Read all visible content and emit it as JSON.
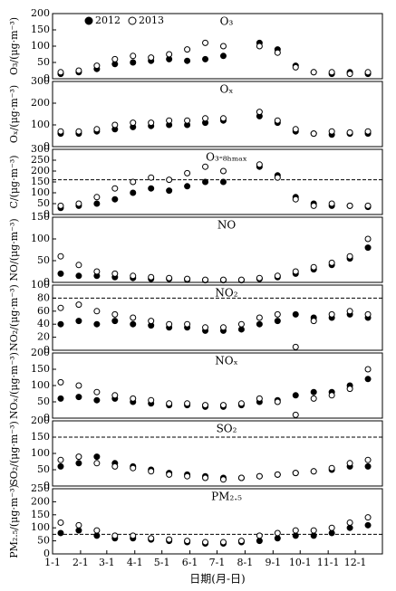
{
  "chart_data": [
    {
      "type": "scatter",
      "title": "O₃",
      "ylabel": "O₃/(μg·m⁻³)",
      "xlim": [
        1,
        366
      ],
      "ylim": [
        0,
        200
      ],
      "yticks": [
        0,
        50,
        100,
        150,
        200
      ],
      "legend": "top left",
      "x": [
        10,
        30,
        50,
        70,
        90,
        110,
        130,
        150,
        170,
        190,
        210,
        230,
        250,
        270,
        290,
        310,
        330,
        350
      ],
      "series": [
        {
          "name": "2012",
          "color": "#000000",
          "filled": true,
          "values": [
            15,
            20,
            30,
            45,
            50,
            55,
            60,
            55,
            60,
            70,
            null,
            110,
            90,
            40,
            20,
            15,
            20,
            15
          ]
        },
        {
          "name": "2013",
          "color": "#000000",
          "filled": false,
          "values": [
            20,
            25,
            40,
            60,
            70,
            65,
            75,
            90,
            110,
            100,
            null,
            100,
            80,
            35,
            20,
            20,
            15,
            20
          ]
        }
      ]
    },
    {
      "type": "scatter",
      "title": "Oₓ",
      "ylabel": "Oₓ/(μg·m⁻³)",
      "xlim": [
        1,
        366
      ],
      "ylim": [
        0,
        300
      ],
      "yticks": [
        0,
        100,
        200,
        300
      ],
      "x": [
        10,
        30,
        50,
        70,
        90,
        110,
        130,
        150,
        170,
        190,
        210,
        230,
        250,
        270,
        290,
        310,
        330,
        350
      ],
      "series": [
        {
          "color": "#000000",
          "filled": true,
          "values": [
            60,
            60,
            70,
            80,
            90,
            95,
            100,
            100,
            110,
            120,
            null,
            140,
            110,
            70,
            60,
            55,
            60,
            60
          ]
        },
        {
          "color": "#000000",
          "filled": false,
          "values": [
            70,
            70,
            80,
            100,
            110,
            110,
            120,
            120,
            130,
            130,
            null,
            160,
            120,
            80,
            60,
            70,
            65,
            70
          ]
        }
      ]
    },
    {
      "type": "scatter",
      "title": "O₃-₈ₕₘₐₓ",
      "ylabel": "C/(μg·m⁻³)",
      "xlim": [
        1,
        366
      ],
      "ylim": [
        0,
        300
      ],
      "yticks": [
        0,
        50,
        100,
        150,
        200,
        250,
        300
      ],
      "reference_line": 160,
      "x": [
        10,
        30,
        50,
        70,
        90,
        110,
        130,
        150,
        170,
        190,
        210,
        230,
        250,
        270,
        290,
        310,
        330,
        350
      ],
      "series": [
        {
          "color": "#000000",
          "filled": true,
          "values": [
            30,
            40,
            50,
            70,
            100,
            120,
            110,
            130,
            150,
            150,
            null,
            220,
            180,
            80,
            50,
            40,
            40,
            35
          ]
        },
        {
          "color": "#000000",
          "filled": false,
          "values": [
            40,
            50,
            80,
            120,
            150,
            170,
            160,
            190,
            220,
            200,
            null,
            230,
            170,
            70,
            40,
            50,
            40,
            40
          ]
        }
      ]
    },
    {
      "type": "scatter",
      "title": "NO",
      "ylabel": "NO/(μg·m⁻³)",
      "xlim": [
        1,
        366
      ],
      "ylim": [
        0,
        150
      ],
      "yticks": [
        0,
        50,
        100,
        150
      ],
      "x": [
        10,
        30,
        50,
        70,
        90,
        110,
        130,
        150,
        170,
        190,
        210,
        230,
        250,
        270,
        290,
        310,
        330,
        350
      ],
      "series": [
        {
          "color": "#000000",
          "filled": true,
          "values": [
            20,
            15,
            15,
            12,
            10,
            8,
            8,
            6,
            5,
            5,
            5,
            8,
            12,
            20,
            30,
            40,
            55,
            80
          ]
        },
        {
          "color": "#000000",
          "filled": false,
          "values": [
            60,
            40,
            25,
            20,
            15,
            12,
            10,
            8,
            6,
            6,
            6,
            10,
            15,
            25,
            35,
            45,
            60,
            100
          ]
        }
      ]
    },
    {
      "type": "scatter",
      "title": "NO₂",
      "ylabel": "NO₂/(μg·m⁻³)",
      "xlim": [
        1,
        366
      ],
      "ylim": [
        0,
        100
      ],
      "yticks": [
        0,
        20,
        40,
        60,
        80,
        100
      ],
      "reference_line": 80,
      "x": [
        10,
        30,
        50,
        70,
        90,
        110,
        130,
        150,
        170,
        190,
        210,
        230,
        250,
        270,
        290,
        310,
        330,
        350
      ],
      "series": [
        {
          "color": "#000000",
          "filled": true,
          "values": [
            40,
            45,
            40,
            45,
            40,
            38,
            35,
            35,
            30,
            30,
            32,
            40,
            45,
            55,
            50,
            50,
            55,
            50
          ]
        },
        {
          "color": "#000000",
          "filled": false,
          "values": [
            65,
            70,
            60,
            55,
            50,
            45,
            40,
            40,
            35,
            35,
            40,
            50,
            55,
            5,
            45,
            55,
            60,
            55
          ]
        }
      ]
    },
    {
      "type": "scatter",
      "title": "NOₓ",
      "ylabel": "NOₓ/(μg·m⁻³)",
      "xlim": [
        1,
        366
      ],
      "ylim": [
        0,
        200
      ],
      "yticks": [
        0,
        50,
        100,
        150,
        200
      ],
      "x": [
        10,
        30,
        50,
        70,
        90,
        110,
        130,
        150,
        170,
        190,
        210,
        230,
        250,
        270,
        290,
        310,
        330,
        350
      ],
      "series": [
        {
          "color": "#000000",
          "filled": true,
          "values": [
            60,
            65,
            55,
            60,
            50,
            45,
            40,
            40,
            35,
            35,
            40,
            50,
            55,
            70,
            80,
            80,
            100,
            120
          ]
        },
        {
          "color": "#000000",
          "filled": false,
          "values": [
            110,
            100,
            80,
            70,
            60,
            55,
            45,
            45,
            40,
            40,
            45,
            60,
            50,
            10,
            60,
            70,
            90,
            150
          ]
        }
      ]
    },
    {
      "type": "scatter",
      "title": "SO₂",
      "ylabel": "SO₂/(μg·m⁻³)",
      "xlim": [
        1,
        366
      ],
      "ylim": [
        0,
        200
      ],
      "yticks": [
        0,
        50,
        100,
        150,
        200
      ],
      "reference_line": 150,
      "x": [
        10,
        30,
        50,
        70,
        90,
        110,
        130,
        150,
        170,
        190,
        210,
        230,
        250,
        270,
        290,
        310,
        330,
        350
      ],
      "series": [
        {
          "color": "#000000",
          "filled": true,
          "values": [
            60,
            70,
            90,
            70,
            60,
            50,
            40,
            35,
            30,
            25,
            25,
            30,
            35,
            40,
            45,
            50,
            60,
            60
          ]
        },
        {
          "color": "#000000",
          "filled": false,
          "values": [
            80,
            90,
            70,
            60,
            55,
            45,
            35,
            30,
            25,
            20,
            25,
            30,
            35,
            40,
            45,
            55,
            70,
            80
          ]
        }
      ]
    },
    {
      "type": "scatter",
      "title": "PM₂.₅",
      "ylabel": "PM₂.₅/(μg·m⁻³)",
      "xlim": [
        1,
        366
      ],
      "ylim": [
        0,
        250
      ],
      "yticks": [
        0,
        50,
        100,
        150,
        200,
        250
      ],
      "reference_line": 75,
      "xlabel": "日期(月-日)",
      "xticks": [
        {
          "value": 1,
          "label": "1-1"
        },
        {
          "value": 32,
          "label": "2-1"
        },
        {
          "value": 61,
          "label": "3-1"
        },
        {
          "value": 92,
          "label": "4-1"
        },
        {
          "value": 122,
          "label": "5-1"
        },
        {
          "value": 153,
          "label": "6-1"
        },
        {
          "value": 183,
          "label": "7-1"
        },
        {
          "value": 214,
          "label": "8-1"
        },
        {
          "value": 245,
          "label": "9-1"
        },
        {
          "value": 275,
          "label": "10-1"
        },
        {
          "value": 306,
          "label": "11-1"
        },
        {
          "value": 336,
          "label": "12-1"
        }
      ],
      "x": [
        10,
        30,
        50,
        70,
        90,
        110,
        130,
        150,
        170,
        190,
        210,
        230,
        250,
        270,
        290,
        310,
        330,
        350
      ],
      "series": [
        {
          "color": "#000000",
          "filled": true,
          "values": [
            80,
            90,
            70,
            60,
            60,
            55,
            50,
            45,
            40,
            40,
            45,
            50,
            60,
            70,
            70,
            80,
            100,
            110
          ]
        },
        {
          "color": "#000000",
          "filled": false,
          "values": [
            120,
            110,
            90,
            70,
            70,
            60,
            55,
            50,
            45,
            45,
            50,
            70,
            80,
            90,
            90,
            100,
            120,
            140
          ]
        }
      ]
    }
  ]
}
